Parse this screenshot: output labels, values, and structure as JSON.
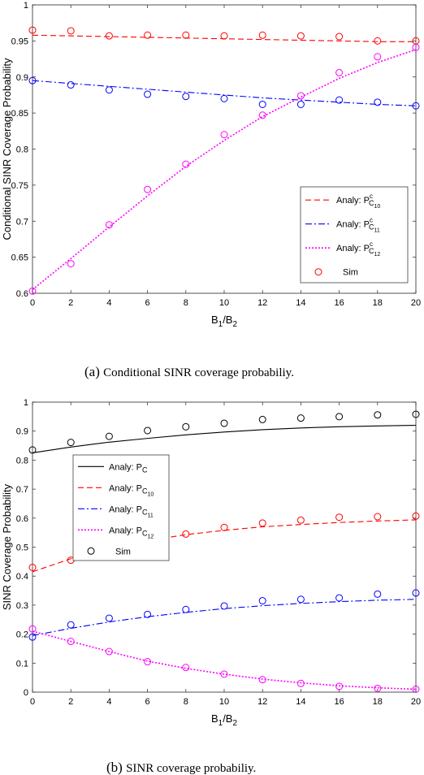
{
  "chart_data": [
    {
      "type": "line",
      "caption_tag": "(a)",
      "caption_text": "Conditional SINR coverage probabiliy.",
      "xlabel": "B",
      "xlabel_sub1": "1",
      "xlabel_mid": "/B",
      "xlabel_sub2": "2",
      "ylabel": "Conditional SINR Coverage Probability",
      "xlim": [
        0,
        20
      ],
      "ylim": [
        0.6,
        1
      ],
      "xticks": [
        0,
        2,
        4,
        6,
        8,
        10,
        12,
        14,
        16,
        18,
        20
      ],
      "yticks": [
        0.6,
        0.65,
        0.7,
        0.75,
        0.8,
        0.85,
        0.9,
        0.95,
        1
      ],
      "legend_position": "lower-right",
      "series": [
        {
          "name": "Analy: P",
          "sup": "c",
          "sub": "C",
          "subsub": "10",
          "style": "dashed",
          "color": "#ff0000",
          "x": [
            0,
            2,
            4,
            6,
            8,
            10,
            12,
            14,
            16,
            18,
            20
          ],
          "values": [
            0.958,
            0.957,
            0.956,
            0.955,
            0.954,
            0.953,
            0.952,
            0.951,
            0.95,
            0.949,
            0.949
          ]
        },
        {
          "name": "Analy: P",
          "sup": "c",
          "sub": "C",
          "subsub": "11",
          "style": "dashdot",
          "color": "#0000ff",
          "x": [
            0,
            2,
            4,
            6,
            8,
            10,
            12,
            14,
            16,
            18,
            20
          ],
          "values": [
            0.895,
            0.891,
            0.887,
            0.883,
            0.879,
            0.875,
            0.871,
            0.868,
            0.865,
            0.862,
            0.86
          ]
        },
        {
          "name": "Analy: P",
          "sup": "c",
          "sub": "C",
          "subsub": "12",
          "style": "dotted",
          "color": "#ff00ff",
          "x": [
            0,
            2,
            4,
            6,
            8,
            10,
            12,
            14,
            16,
            18,
            20
          ],
          "values": [
            0.605,
            0.648,
            0.692,
            0.735,
            0.776,
            0.812,
            0.845,
            0.872,
            0.898,
            0.92,
            0.938
          ]
        }
      ],
      "sim": {
        "name": "Sim",
        "color": "#ff0000",
        "points": [
          {
            "color": "#ff0000",
            "x": [
              0,
              2,
              4,
              6,
              8,
              10,
              12,
              14,
              16,
              18,
              20
            ],
            "values": [
              0.965,
              0.964,
              0.957,
              0.958,
              0.958,
              0.957,
              0.958,
              0.957,
              0.956,
              0.95,
              0.95
            ]
          },
          {
            "color": "#0000ff",
            "x": [
              0,
              2,
              4,
              6,
              8,
              10,
              12,
              14,
              16,
              18,
              20
            ],
            "values": [
              0.895,
              0.889,
              0.882,
              0.876,
              0.873,
              0.87,
              0.862,
              0.862,
              0.868,
              0.865,
              0.86
            ]
          },
          {
            "color": "#ff00ff",
            "x": [
              0,
              2,
              4,
              6,
              8,
              10,
              12,
              14,
              16,
              18,
              20
            ],
            "values": [
              0.603,
              0.641,
              0.695,
              0.744,
              0.779,
              0.82,
              0.847,
              0.874,
              0.906,
              0.928,
              0.941
            ]
          }
        ]
      }
    },
    {
      "type": "line",
      "caption_tag": "(b)",
      "caption_text": "SINR coverage probabiliy.",
      "xlabel": "B",
      "xlabel_sub1": "1",
      "xlabel_mid": "/B",
      "xlabel_sub2": "2",
      "ylabel": "SINR Coverage Probability",
      "xlim": [
        0,
        20
      ],
      "ylim": [
        0,
        1
      ],
      "xticks": [
        0,
        2,
        4,
        6,
        8,
        10,
        12,
        14,
        16,
        18,
        20
      ],
      "yticks": [
        0,
        0.1,
        0.2,
        0.3,
        0.4,
        0.5,
        0.6,
        0.7,
        0.8,
        0.9,
        1
      ],
      "legend_position": "upper-left",
      "series": [
        {
          "name": "Analy: P",
          "sup": "",
          "sub": "C",
          "subsub": "",
          "style": "solid",
          "color": "#000000",
          "x": [
            0,
            2,
            4,
            6,
            8,
            10,
            12,
            14,
            16,
            18,
            20
          ],
          "values": [
            0.825,
            0.845,
            0.862,
            0.875,
            0.887,
            0.897,
            0.905,
            0.911,
            0.915,
            0.918,
            0.92
          ]
        },
        {
          "name": "Analy: P",
          "sup": "",
          "sub": "C",
          "subsub": "10",
          "style": "dashed",
          "color": "#ff0000",
          "x": [
            0,
            2,
            4,
            6,
            8,
            10,
            12,
            14,
            16,
            18,
            20
          ],
          "values": [
            0.415,
            0.46,
            0.495,
            0.522,
            0.543,
            0.558,
            0.57,
            0.578,
            0.585,
            0.59,
            0.594
          ]
        },
        {
          "name": "Analy: P",
          "sup": "",
          "sub": "C",
          "subsub": "11",
          "style": "dashdot",
          "color": "#0000ff",
          "x": [
            0,
            2,
            4,
            6,
            8,
            10,
            12,
            14,
            16,
            18,
            20
          ],
          "values": [
            0.195,
            0.22,
            0.242,
            0.26,
            0.275,
            0.288,
            0.298,
            0.306,
            0.312,
            0.317,
            0.32
          ]
        },
        {
          "name": "Analy: P",
          "sup": "",
          "sub": "C",
          "subsub": "12",
          "style": "dotted",
          "color": "#ff00ff",
          "x": [
            0,
            2,
            4,
            6,
            8,
            10,
            12,
            14,
            16,
            18,
            20
          ],
          "values": [
            0.21,
            0.175,
            0.14,
            0.107,
            0.082,
            0.062,
            0.045,
            0.032,
            0.022,
            0.015,
            0.01
          ]
        }
      ],
      "sim": {
        "name": "Sim",
        "color": "#000000",
        "points": [
          {
            "color": "#000000",
            "x": [
              0,
              2,
              4,
              6,
              8,
              10,
              12,
              14,
              16,
              18,
              20
            ],
            "values": [
              0.835,
              0.861,
              0.882,
              0.902,
              0.915,
              0.927,
              0.94,
              0.945,
              0.95,
              0.956,
              0.958
            ]
          },
          {
            "color": "#ff0000",
            "x": [
              0,
              2,
              4,
              6,
              8,
              10,
              12,
              14,
              16,
              18,
              20
            ],
            "values": [
              0.43,
              0.455,
              0.495,
              0.525,
              0.545,
              0.568,
              0.583,
              0.593,
              0.603,
              0.605,
              0.607
            ]
          },
          {
            "color": "#0000ff",
            "x": [
              0,
              2,
              4,
              6,
              8,
              10,
              12,
              14,
              16,
              18,
              20
            ],
            "values": [
              0.19,
              0.232,
              0.255,
              0.268,
              0.285,
              0.297,
              0.315,
              0.32,
              0.325,
              0.338,
              0.342
            ]
          },
          {
            "color": "#ff00ff",
            "x": [
              0,
              2,
              4,
              6,
              8,
              10,
              12,
              14,
              16,
              18,
              20
            ],
            "values": [
              0.218,
              0.175,
              0.14,
              0.105,
              0.085,
              0.062,
              0.043,
              0.03,
              0.02,
              0.013,
              0.01
            ]
          }
        ]
      }
    }
  ]
}
